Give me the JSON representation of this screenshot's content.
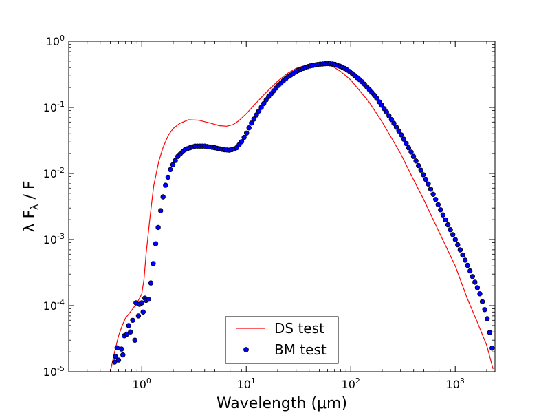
{
  "chart_data": {
    "type": "line",
    "xlabel": "Wavelength (μm)",
    "ylabel_text": "λ F",
    "ylabel_sub": "λ",
    "ylabel_tail": " / F",
    "x_scale": "log",
    "y_scale": "log",
    "xlim": [
      0.2,
      2400
    ],
    "ylim": [
      1e-05,
      1
    ],
    "x_ticks": [
      {
        "value": 1,
        "base": "10",
        "exp": "0"
      },
      {
        "value": 10,
        "base": "10",
        "exp": "1"
      },
      {
        "value": 100,
        "base": "10",
        "exp": "2"
      },
      {
        "value": 1000,
        "base": "10",
        "exp": "3"
      }
    ],
    "y_ticks": [
      {
        "value": 1e-05,
        "base": "10",
        "exp": "-5"
      },
      {
        "value": 0.0001,
        "base": "10",
        "exp": "-4"
      },
      {
        "value": 0.001,
        "base": "10",
        "exp": "-3"
      },
      {
        "value": 0.01,
        "base": "10",
        "exp": "-2"
      },
      {
        "value": 0.1,
        "base": "10",
        "exp": "-1"
      },
      {
        "value": 1,
        "base": "10",
        "exp": "0"
      }
    ],
    "grid": false,
    "legend_position": "lower-center",
    "series": [
      {
        "name": "DS test",
        "style": "line",
        "color": "#ff0000",
        "points": [
          [
            0.5,
            1e-05
          ],
          [
            0.55,
            2e-05
          ],
          [
            0.6,
            3.5e-05
          ],
          [
            0.65,
            5e-05
          ],
          [
            0.7,
            6.5e-05
          ],
          [
            0.8,
            8.5e-05
          ],
          [
            0.9,
            0.00011
          ],
          [
            1.0,
            0.00015
          ],
          [
            1.05,
            0.00025
          ],
          [
            1.1,
            0.0006
          ],
          [
            1.2,
            0.0022
          ],
          [
            1.3,
            0.0065
          ],
          [
            1.45,
            0.015
          ],
          [
            1.6,
            0.025
          ],
          [
            1.8,
            0.038
          ],
          [
            2.0,
            0.048
          ],
          [
            2.3,
            0.057
          ],
          [
            2.8,
            0.065
          ],
          [
            3.5,
            0.064
          ],
          [
            4.5,
            0.058
          ],
          [
            5.5,
            0.053
          ],
          [
            6.5,
            0.052
          ],
          [
            7.5,
            0.055
          ],
          [
            8.5,
            0.063
          ],
          [
            10.0,
            0.08
          ],
          [
            12.0,
            0.11
          ],
          [
            15.0,
            0.16
          ],
          [
            20.0,
            0.25
          ],
          [
            25.0,
            0.33
          ],
          [
            30.0,
            0.39
          ],
          [
            40.0,
            0.45
          ],
          [
            50.0,
            0.47
          ],
          [
            60.0,
            0.45
          ],
          [
            70.0,
            0.4
          ],
          [
            80.0,
            0.35
          ],
          [
            100.0,
            0.26
          ],
          [
            150.0,
            0.12
          ],
          [
            200.0,
            0.06
          ],
          [
            300.0,
            0.02
          ],
          [
            400.0,
            0.008
          ],
          [
            500.0,
            0.004
          ],
          [
            700.0,
            0.0013
          ],
          [
            1000.0,
            0.0004
          ],
          [
            1300.0,
            0.00013
          ],
          [
            1600.0,
            6e-05
          ],
          [
            2000.0,
            2.5e-05
          ],
          [
            2300.0,
            1.1e-05
          ]
        ]
      },
      {
        "name": "BM test",
        "style": "markers",
        "color": "#0000ff",
        "edge_color": "#000000",
        "scatter_points": [
          [
            0.55,
            1.4e-05
          ],
          [
            0.56,
            1.7e-05
          ],
          [
            0.58,
            2.3e-05
          ],
          [
            0.6,
            1.5e-05
          ],
          [
            0.64,
            2.2e-05
          ],
          [
            0.66,
            1.8e-05
          ],
          [
            0.68,
            3.5e-05
          ],
          [
            0.72,
            3.7e-05
          ],
          [
            0.75,
            5e-05
          ],
          [
            0.78,
            4e-05
          ],
          [
            0.82,
            6e-05
          ],
          [
            0.86,
            3e-05
          ],
          [
            0.88,
            0.00011
          ],
          [
            0.93,
            7e-05
          ],
          [
            0.95,
            0.000105
          ],
          [
            1.0,
            0.00011
          ],
          [
            1.03,
            8e-05
          ],
          [
            1.07,
            0.00013
          ],
          [
            1.1,
            0.00012
          ],
          [
            1.16,
            0.000125
          ]
        ],
        "curve_points": [
          [
            1.22,
            0.00022
          ],
          [
            1.28,
            0.0004
          ],
          [
            1.35,
            0.0008
          ],
          [
            1.45,
            0.0017
          ],
          [
            1.55,
            0.0035
          ],
          [
            1.7,
            0.007
          ],
          [
            1.9,
            0.012
          ],
          [
            2.2,
            0.018
          ],
          [
            2.6,
            0.023
          ],
          [
            3.2,
            0.026
          ],
          [
            4.0,
            0.026
          ],
          [
            5.0,
            0.0245
          ],
          [
            6.0,
            0.023
          ],
          [
            7.0,
            0.0225
          ],
          [
            8.0,
            0.024
          ],
          [
            9.0,
            0.03
          ],
          [
            10.0,
            0.04
          ],
          [
            11.0,
            0.055
          ],
          [
            13.0,
            0.085
          ],
          [
            16.0,
            0.14
          ],
          [
            20.0,
            0.21
          ],
          [
            25.0,
            0.29
          ],
          [
            32.0,
            0.37
          ],
          [
            40.0,
            0.42
          ],
          [
            50.0,
            0.45
          ],
          [
            60.0,
            0.46
          ],
          [
            70.0,
            0.45
          ],
          [
            85.0,
            0.4
          ],
          [
            100.0,
            0.34
          ],
          [
            130.0,
            0.24
          ],
          [
            170.0,
            0.15
          ],
          [
            220.0,
            0.085
          ],
          [
            300.0,
            0.04
          ],
          [
            400.0,
            0.018
          ],
          [
            550.0,
            0.007
          ],
          [
            750.0,
            0.0025
          ],
          [
            1000.0,
            0.001
          ],
          [
            1300.0,
            0.00042
          ],
          [
            1700.0,
            0.00016
          ],
          [
            2000.0,
            7e-05
          ],
          [
            2200.0,
            3e-05
          ],
          [
            2350.0,
            1.4e-05
          ]
        ]
      }
    ]
  }
}
